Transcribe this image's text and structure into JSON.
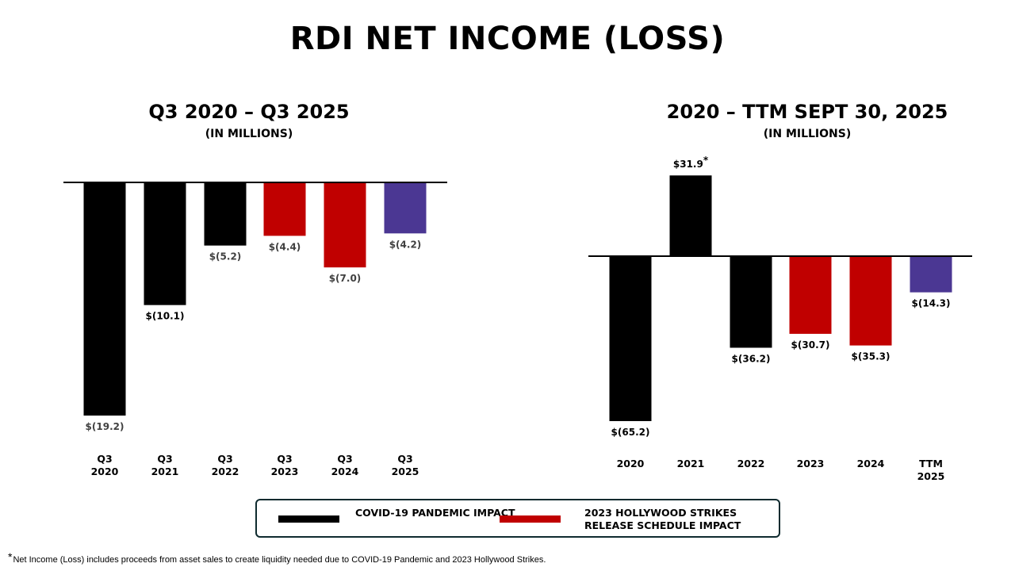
{
  "title": "RDI NET INCOME (LOSS)",
  "colors": {
    "covid": "#000000",
    "strikes": "#c00000",
    "current": "#4b3793",
    "legend_border": "#0f2b2f"
  },
  "chart_data": [
    {
      "type": "bar",
      "title": "Q3 2020 – Q3 2025",
      "subtitle": "(IN MILLIONS)",
      "categories": [
        "Q3\n2020",
        "Q3\n2021",
        "Q3\n2022",
        "Q3\n2023",
        "Q3\n2024",
        "Q3\n2025"
      ],
      "values": [
        -19.2,
        -10.1,
        -5.2,
        -4.4,
        -7.0,
        -4.2
      ],
      "value_labels": [
        "$(19.2)",
        "$(10.1)",
        "$(5.2)",
        "$(4.4)",
        "$(7.0)",
        "$(4.2)"
      ],
      "bar_colors": [
        "#000000",
        "#000000",
        "#000000",
        "#c00000",
        "#c00000",
        "#4b3793"
      ],
      "xlabel": "",
      "ylabel": "",
      "ylim": [
        -19.2,
        0
      ]
    },
    {
      "type": "bar",
      "title": "2020 – TTM SEPT 30, 2025",
      "subtitle": "(IN MILLIONS)",
      "categories": [
        "2020",
        "2021",
        "2022",
        "2023",
        "2024",
        "TTM\n2025"
      ],
      "values": [
        -65.2,
        31.9,
        -36.2,
        -30.7,
        -35.3,
        -14.3
      ],
      "value_labels": [
        "$(65.2)",
        "$31.9",
        "$(36.2)",
        "$(30.7)",
        "$(35.3)",
        "$(14.3)"
      ],
      "label_marks": [
        "",
        "*",
        "",
        "",
        "",
        ""
      ],
      "bar_colors": [
        "#000000",
        "#000000",
        "#000000",
        "#c00000",
        "#c00000",
        "#4b3793"
      ],
      "xlabel": "",
      "ylabel": "",
      "ylim": [
        -65.2,
        31.9
      ]
    }
  ],
  "legend": {
    "items": [
      {
        "label": "COVID-19 PANDEMIC IMPACT",
        "color": "#000000"
      },
      {
        "label": "2023 HOLLYWOOD STRIKES RELEASE SCHEDULE IMPACT",
        "color": "#c00000"
      }
    ]
  },
  "footnote": {
    "mark": "*",
    "text": "Net Income (Loss) includes proceeds from asset sales to create liquidity needed due to COVID-19 Pandemic and 2023 Hollywood Strikes."
  }
}
